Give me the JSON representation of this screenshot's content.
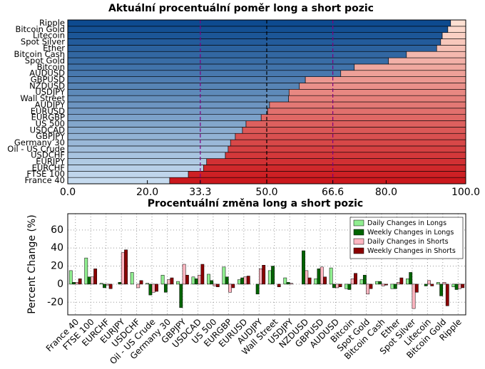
{
  "chart_data": [
    {
      "type": "barh",
      "title": "Aktuální procentuální poměr long a short pozic",
      "categories": [
        "France 40",
        "FTSE 100",
        "EURCHF",
        "EURJPY",
        "USDCHF",
        "Oil - US Crude",
        "Germany 30",
        "GBPJPY",
        "USDCAD",
        "US 500",
        "EURGBP",
        "EURUSD",
        "AUDJPY",
        "Wall Street",
        "USDJPY",
        "NZDUSD",
        "GBPUSD",
        "AUDUSD",
        "Bitcoin",
        "Spot Gold",
        "Bitcoin Cash",
        "Ether",
        "Spot Silver",
        "Litecoin",
        "Bitcoin Gold",
        "Ripple"
      ],
      "stacked": true,
      "series": [
        {
          "color": [
            "#c6dbef",
            "#0d4a8f"
          ],
          "values": [
            25.6,
            30.3,
            34.1,
            34.9,
            39.6,
            40.3,
            40.9,
            42.1,
            43.9,
            44.8,
            48.6,
            50.2,
            50.7,
            55.5,
            55.6,
            58.2,
            59.7,
            68.6,
            72.0,
            80.6,
            85.1,
            92.7,
            93.7,
            94.1,
            95.5,
            96.2
          ]
        },
        {
          "color": [
            "#cb181d",
            "#fee0d2"
          ],
          "values": [
            74.4,
            69.7,
            65.9,
            65.1,
            60.4,
            59.7,
            59.1,
            57.9,
            56.1,
            55.2,
            51.4,
            49.8,
            49.3,
            44.5,
            44.4,
            41.8,
            40.3,
            31.4,
            28.0,
            19.4,
            14.9,
            7.3,
            6.3,
            5.9,
            4.5,
            3.8
          ]
        }
      ],
      "xlim": [
        0,
        100
      ],
      "xticks": [
        {
          "value": 0,
          "label": "0.0"
        },
        {
          "value": 20,
          "label": "20.0"
        },
        33.3,
        {
          "value": 50,
          "label": "50.0"
        },
        66.6,
        {
          "value": 80,
          "label": "80.0"
        },
        {
          "value": 100,
          "label": "100.0"
        }
      ],
      "reference_lines": [
        {
          "value": 33.3,
          "color": "#800080"
        },
        {
          "value": 50,
          "color": "#000000"
        },
        {
          "value": 66.6,
          "color": "#800080"
        }
      ]
    },
    {
      "type": "bar",
      "title": "Procentuální změna long a short pozic",
      "y_label": "Percent Change (%)",
      "categories": [
        "France 40",
        "FTSE 100",
        "EURCHF",
        "EURJPY",
        "USDCHF",
        "Oil - US Crude",
        "Germany 30",
        "GBPJPY",
        "USDCAD",
        "US 500",
        "EURGBP",
        "EURUSD",
        "AUDJPY",
        "Wall Street",
        "USDJPY",
        "NZDUSD",
        "GBPUSD",
        "AUDUSD",
        "Bitcoin",
        "Spot Gold",
        "Bitcoin Cash",
        "Ether",
        "Spot Silver",
        "Litecoin",
        "Bitcoin Gold",
        "Ripple"
      ],
      "series": [
        {
          "name": "Daily Changes in Longs",
          "color": "#90ee90",
          "values": [
            15,
            29,
            1,
            0,
            13,
            1,
            10,
            3,
            8,
            11,
            19,
            5,
            0,
            15,
            7,
            0,
            6,
            18,
            -5,
            5,
            3,
            -5,
            6,
            0,
            2,
            -3
          ]
        },
        {
          "name": "Weekly Changes in Longs",
          "color": "#006400",
          "values": [
            2,
            8,
            -4,
            2,
            0,
            -12,
            -9,
            -26,
            6,
            4,
            8,
            7,
            -11,
            20,
            2,
            37,
            17,
            -4,
            -6,
            10,
            3,
            -5,
            13,
            -2,
            -13,
            -6
          ]
        },
        {
          "name": "Daily Changes in Shorts",
          "color": "#ffb6c1",
          "values": [
            2,
            8,
            -1,
            35,
            -4,
            -9,
            5,
            22,
            10,
            -2,
            -9,
            8,
            17,
            0,
            1,
            15,
            19,
            -4,
            6,
            -11,
            -2,
            2,
            -27,
            4,
            2,
            -5
          ]
        },
        {
          "name": "Weekly Changes in Shorts",
          "color": "#8b0000",
          "values": [
            6,
            17,
            -5,
            38,
            4,
            -8,
            7,
            10,
            22,
            -3,
            -4,
            9,
            21,
            -3,
            0,
            7,
            8,
            -3,
            12,
            -5,
            -1,
            7,
            -9,
            -2,
            -24,
            -4
          ]
        }
      ],
      "ylim": [
        -34,
        78
      ],
      "yticks": [
        -20,
        0,
        20,
        40,
        60
      ],
      "grid": true,
      "legend": "upper right"
    }
  ]
}
